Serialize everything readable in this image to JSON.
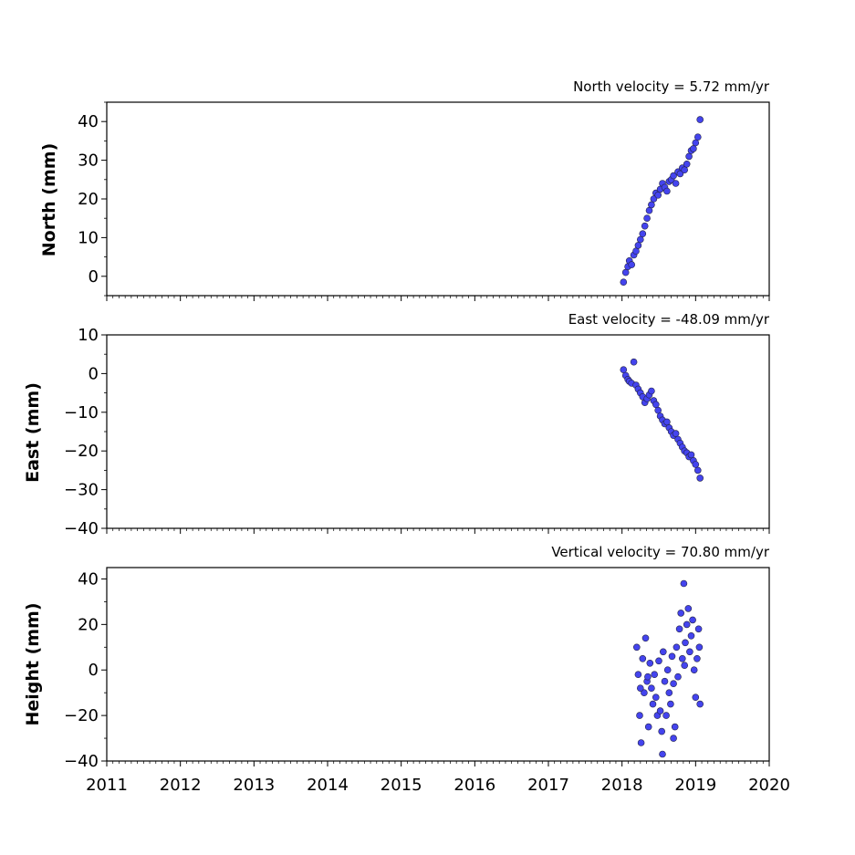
{
  "chart_data": [
    {
      "type": "scatter",
      "title": "North velocity = 5.72 mm/yr",
      "xlabel": "",
      "ylabel": "North (mm)",
      "xlim": [
        2011,
        2020
      ],
      "ylim": [
        -5,
        45
      ],
      "yticks": [
        0,
        10,
        20,
        30,
        40
      ],
      "ytick_labels": [
        "0",
        "10",
        "20",
        "30",
        "40"
      ],
      "grid": false,
      "marker_color": "#4444ee",
      "x": [
        2018.02,
        2018.05,
        2018.08,
        2018.1,
        2018.13,
        2018.16,
        2018.19,
        2018.22,
        2018.25,
        2018.28,
        2018.31,
        2018.34,
        2018.37,
        2018.4,
        2018.43,
        2018.46,
        2018.49,
        2018.52,
        2018.55,
        2018.58,
        2018.61,
        2018.64,
        2018.67,
        2018.7,
        2018.73,
        2018.76,
        2018.79,
        2018.82,
        2018.85,
        2018.88,
        2018.91,
        2018.94,
        2018.97,
        2019.0,
        2019.03,
        2019.06
      ],
      "y": [
        -1.5,
        1.0,
        2.5,
        4.0,
        3.0,
        5.5,
        6.5,
        8.0,
        9.5,
        11.0,
        13.0,
        15.0,
        17.0,
        18.5,
        20.0,
        21.5,
        21.0,
        22.5,
        24.0,
        23.0,
        22.0,
        24.5,
        25.0,
        26.0,
        24.0,
        27.0,
        26.5,
        28.0,
        27.5,
        29.0,
        31.0,
        32.5,
        33.0,
        34.5,
        36.0,
        40.5
      ]
    },
    {
      "type": "scatter",
      "title": "East velocity = -48.09 mm/yr",
      "xlabel": "",
      "ylabel": "East (mm)",
      "xlim": [
        2011,
        2020
      ],
      "ylim": [
        -40,
        10
      ],
      "yticks": [
        10,
        0,
        -10,
        -20,
        -30,
        -40
      ],
      "ytick_labels": [
        "10",
        "0",
        "−10",
        "−20",
        "−30",
        "−40"
      ],
      "grid": false,
      "marker_color": "#4444ee",
      "x": [
        2018.02,
        2018.05,
        2018.08,
        2018.1,
        2018.13,
        2018.16,
        2018.19,
        2018.22,
        2018.25,
        2018.28,
        2018.31,
        2018.34,
        2018.37,
        2018.4,
        2018.43,
        2018.46,
        2018.49,
        2018.52,
        2018.55,
        2018.58,
        2018.61,
        2018.64,
        2018.67,
        2018.7,
        2018.73,
        2018.76,
        2018.79,
        2018.82,
        2018.85,
        2018.88,
        2018.91,
        2018.94,
        2018.97,
        2019.0,
        2019.03,
        2019.06
      ],
      "y": [
        1.0,
        -0.5,
        -1.5,
        -2.0,
        -2.5,
        3.0,
        -3.0,
        -4.0,
        -5.0,
        -6.0,
        -7.5,
        -6.5,
        -5.5,
        -4.5,
        -7.0,
        -8.0,
        -9.5,
        -11.0,
        -12.0,
        -13.0,
        -12.5,
        -14.0,
        -15.0,
        -16.0,
        -15.5,
        -17.0,
        -18.0,
        -19.0,
        -20.0,
        -20.5,
        -21.5,
        -21.0,
        -22.5,
        -23.5,
        -25.0,
        -27.0
      ]
    },
    {
      "type": "scatter",
      "title": "Vertical velocity = 70.80 mm/yr",
      "xlabel": "",
      "ylabel": "Height (mm)",
      "xlim": [
        2011,
        2020
      ],
      "ylim": [
        -40,
        45
      ],
      "yticks": [
        40,
        20,
        0,
        -20,
        -40
      ],
      "ytick_labels": [
        "40",
        "20",
        "0",
        "−20",
        "−40"
      ],
      "xticks": [
        2011,
        2012,
        2013,
        2014,
        2015,
        2016,
        2017,
        2018,
        2019,
        2020
      ],
      "xtick_labels": [
        "2011",
        "2012",
        "2013",
        "2014",
        "2015",
        "2016",
        "2017",
        "2018",
        "2019",
        "2020"
      ],
      "grid": false,
      "marker_color": "#4444ee",
      "x": [
        2018.2,
        2018.22,
        2018.24,
        2018.26,
        2018.28,
        2018.3,
        2018.32,
        2018.34,
        2018.36,
        2018.38,
        2018.4,
        2018.42,
        2018.44,
        2018.46,
        2018.48,
        2018.5,
        2018.52,
        2018.54,
        2018.56,
        2018.58,
        2018.6,
        2018.62,
        2018.64,
        2018.66,
        2018.68,
        2018.7,
        2018.72,
        2018.74,
        2018.76,
        2018.78,
        2018.8,
        2018.82,
        2018.84,
        2018.86,
        2018.88,
        2018.9,
        2018.92,
        2018.94,
        2018.96,
        2018.98,
        2019.0,
        2019.02,
        2019.04,
        2019.06,
        2018.25,
        2018.35,
        2018.55,
        2018.7,
        2018.85,
        2019.05
      ],
      "y": [
        10,
        -2,
        -20,
        -32,
        5,
        -10,
        14,
        -5,
        -25,
        3,
        -8,
        -15,
        -2,
        -12,
        -20,
        4,
        -18,
        -27,
        8,
        -5,
        -20,
        0,
        -10,
        -15,
        6,
        -6,
        -25,
        10,
        -3,
        18,
        25,
        5,
        38,
        12,
        20,
        27,
        8,
        15,
        22,
        0,
        -12,
        5,
        18,
        -15,
        -8,
        -3,
        -37,
        -30,
        2,
        10
      ]
    }
  ]
}
